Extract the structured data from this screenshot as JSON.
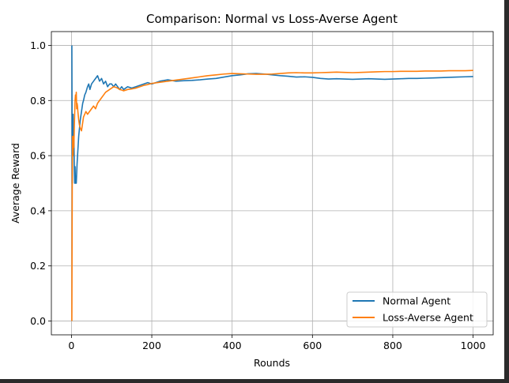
{
  "chart_data": {
    "type": "line",
    "title": "Comparison: Normal vs Loss-Averse Agent",
    "xlabel": "Rounds",
    "ylabel": "Average Reward",
    "xlim": [
      -50,
      1050
    ],
    "ylim": [
      -0.05,
      1.05
    ],
    "xticks": [
      0,
      200,
      400,
      600,
      800,
      1000
    ],
    "yticks": [
      0.0,
      0.2,
      0.4,
      0.6,
      0.8,
      1.0
    ],
    "xtick_labels": [
      "0",
      "200",
      "400",
      "600",
      "800",
      "1000"
    ],
    "ytick_labels": [
      "0.0",
      "0.2",
      "0.4",
      "0.6",
      "0.8",
      "1.0"
    ],
    "grid": true,
    "legend_position": "lower right",
    "series": [
      {
        "name": "Normal Agent",
        "color": "#1f77b4",
        "points": [
          [
            1,
            1.0
          ],
          [
            2,
            0.5
          ],
          [
            3,
            0.67
          ],
          [
            4,
            0.75
          ],
          [
            5,
            0.6
          ],
          [
            6,
            0.67
          ],
          [
            7,
            0.57
          ],
          [
            8,
            0.5
          ],
          [
            9,
            0.56
          ],
          [
            10,
            0.5
          ],
          [
            12,
            0.5
          ],
          [
            14,
            0.57
          ],
          [
            16,
            0.62
          ],
          [
            18,
            0.67
          ],
          [
            20,
            0.7
          ],
          [
            22,
            0.73
          ],
          [
            25,
            0.76
          ],
          [
            28,
            0.79
          ],
          [
            30,
            0.8
          ],
          [
            33,
            0.82
          ],
          [
            36,
            0.83
          ],
          [
            40,
            0.85
          ],
          [
            43,
            0.86
          ],
          [
            46,
            0.84
          ],
          [
            50,
            0.86
          ],
          [
            55,
            0.87
          ],
          [
            60,
            0.88
          ],
          [
            65,
            0.89
          ],
          [
            70,
            0.87
          ],
          [
            75,
            0.88
          ],
          [
            80,
            0.86
          ],
          [
            85,
            0.87
          ],
          [
            90,
            0.85
          ],
          [
            95,
            0.86
          ],
          [
            100,
            0.86
          ],
          [
            105,
            0.85
          ],
          [
            110,
            0.86
          ],
          [
            115,
            0.85
          ],
          [
            120,
            0.84
          ],
          [
            125,
            0.85
          ],
          [
            130,
            0.84
          ],
          [
            140,
            0.85
          ],
          [
            150,
            0.845
          ],
          [
            160,
            0.85
          ],
          [
            170,
            0.855
          ],
          [
            180,
            0.86
          ],
          [
            190,
            0.865
          ],
          [
            200,
            0.86
          ],
          [
            210,
            0.865
          ],
          [
            220,
            0.87
          ],
          [
            240,
            0.875
          ],
          [
            260,
            0.87
          ],
          [
            280,
            0.872
          ],
          [
            300,
            0.873
          ],
          [
            320,
            0.875
          ],
          [
            340,
            0.878
          ],
          [
            360,
            0.88
          ],
          [
            380,
            0.885
          ],
          [
            400,
            0.89
          ],
          [
            420,
            0.893
          ],
          [
            440,
            0.897
          ],
          [
            460,
            0.898
          ],
          [
            480,
            0.896
          ],
          [
            500,
            0.893
          ],
          [
            520,
            0.89
          ],
          [
            540,
            0.888
          ],
          [
            560,
            0.885
          ],
          [
            580,
            0.886
          ],
          [
            600,
            0.884
          ],
          [
            620,
            0.88
          ],
          [
            640,
            0.878
          ],
          [
            660,
            0.879
          ],
          [
            680,
            0.878
          ],
          [
            700,
            0.877
          ],
          [
            720,
            0.878
          ],
          [
            740,
            0.879
          ],
          [
            760,
            0.878
          ],
          [
            780,
            0.877
          ],
          [
            800,
            0.878
          ],
          [
            820,
            0.879
          ],
          [
            840,
            0.88
          ],
          [
            860,
            0.88
          ],
          [
            880,
            0.881
          ],
          [
            900,
            0.882
          ],
          [
            920,
            0.883
          ],
          [
            940,
            0.884
          ],
          [
            960,
            0.885
          ],
          [
            980,
            0.886
          ],
          [
            1000,
            0.887
          ]
        ]
      },
      {
        "name": "Loss-Averse Agent",
        "color": "#ff7f0e",
        "points": [
          [
            1,
            0.0
          ],
          [
            2,
            0.5
          ],
          [
            3,
            0.67
          ],
          [
            4,
            0.6
          ],
          [
            5,
            0.67
          ],
          [
            6,
            0.63
          ],
          [
            7,
            0.7
          ],
          [
            8,
            0.75
          ],
          [
            9,
            0.8
          ],
          [
            10,
            0.82
          ],
          [
            11,
            0.8
          ],
          [
            12,
            0.83
          ],
          [
            13,
            0.77
          ],
          [
            14,
            0.79
          ],
          [
            15,
            0.78
          ],
          [
            16,
            0.76
          ],
          [
            18,
            0.73
          ],
          [
            20,
            0.71
          ],
          [
            22,
            0.7
          ],
          [
            25,
            0.69
          ],
          [
            28,
            0.72
          ],
          [
            30,
            0.74
          ],
          [
            33,
            0.75
          ],
          [
            36,
            0.76
          ],
          [
            40,
            0.75
          ],
          [
            45,
            0.76
          ],
          [
            50,
            0.77
          ],
          [
            55,
            0.78
          ],
          [
            60,
            0.77
          ],
          [
            65,
            0.79
          ],
          [
            70,
            0.8
          ],
          [
            75,
            0.81
          ],
          [
            80,
            0.82
          ],
          [
            85,
            0.83
          ],
          [
            90,
            0.835
          ],
          [
            95,
            0.84
          ],
          [
            100,
            0.845
          ],
          [
            105,
            0.85
          ],
          [
            110,
            0.848
          ],
          [
            115,
            0.845
          ],
          [
            120,
            0.84
          ],
          [
            125,
            0.838
          ],
          [
            130,
            0.835
          ],
          [
            140,
            0.84
          ],
          [
            150,
            0.842
          ],
          [
            160,
            0.845
          ],
          [
            170,
            0.85
          ],
          [
            180,
            0.855
          ],
          [
            190,
            0.858
          ],
          [
            200,
            0.862
          ],
          [
            220,
            0.866
          ],
          [
            240,
            0.87
          ],
          [
            260,
            0.874
          ],
          [
            280,
            0.878
          ],
          [
            300,
            0.882
          ],
          [
            320,
            0.886
          ],
          [
            340,
            0.89
          ],
          [
            360,
            0.893
          ],
          [
            380,
            0.896
          ],
          [
            400,
            0.898
          ],
          [
            420,
            0.897
          ],
          [
            440,
            0.896
          ],
          [
            460,
            0.895
          ],
          [
            480,
            0.895
          ],
          [
            500,
            0.896
          ],
          [
            520,
            0.898
          ],
          [
            540,
            0.9
          ],
          [
            560,
            0.901
          ],
          [
            580,
            0.9
          ],
          [
            600,
            0.9
          ],
          [
            620,
            0.901
          ],
          [
            640,
            0.902
          ],
          [
            660,
            0.903
          ],
          [
            680,
            0.902
          ],
          [
            700,
            0.901
          ],
          [
            720,
            0.902
          ],
          [
            740,
            0.903
          ],
          [
            760,
            0.904
          ],
          [
            780,
            0.905
          ],
          [
            800,
            0.905
          ],
          [
            820,
            0.906
          ],
          [
            840,
            0.906
          ],
          [
            860,
            0.906
          ],
          [
            880,
            0.907
          ],
          [
            900,
            0.907
          ],
          [
            920,
            0.907
          ],
          [
            940,
            0.908
          ],
          [
            960,
            0.908
          ],
          [
            980,
            0.908
          ],
          [
            1000,
            0.909
          ]
        ]
      }
    ]
  }
}
